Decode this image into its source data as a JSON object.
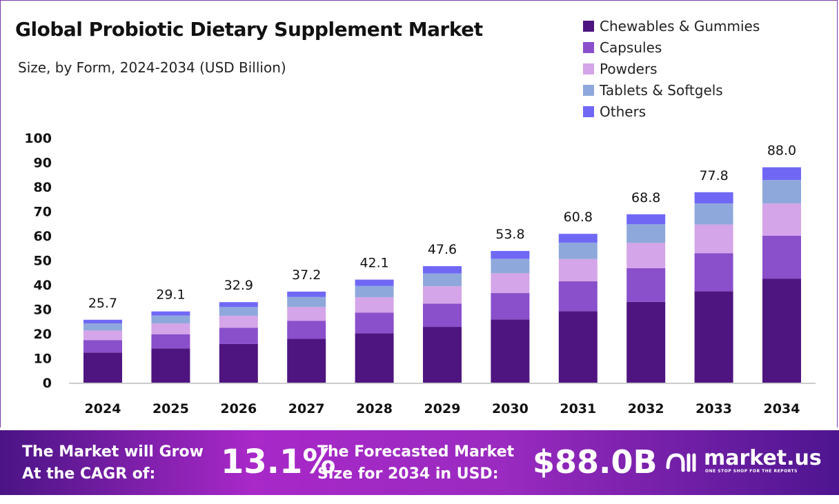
{
  "title": "Global Probiotic Dietary Supplement Market",
  "subtitle": "Size, by Form, 2024-2034 (USD Billion)",
  "legend": [
    "Chewables & Gummies",
    "Capsules",
    "Powders",
    "Tablets & Softgels",
    "Others"
  ],
  "colors": [
    "#4e1580",
    "#8a4fcb",
    "#d4a5e8",
    "#8fa8dc",
    "#7068f5"
  ],
  "chart_data": {
    "type": "bar",
    "stacked": true,
    "title": "Global Probiotic Dietary Supplement Market",
    "subtitle": "Size, by Form, 2024-2034 (USD Billion)",
    "categories": [
      "2024",
      "2025",
      "2026",
      "2027",
      "2028",
      "2029",
      "2030",
      "2031",
      "2032",
      "2033",
      "2034"
    ],
    "series": [
      {
        "name": "Chewables & Gummies",
        "values": [
          12.3,
          14.0,
          15.8,
          17.9,
          20.2,
          22.8,
          25.8,
          29.2,
          33.0,
          37.3,
          42.5
        ]
      },
      {
        "name": "Capsules",
        "values": [
          5.1,
          5.8,
          6.6,
          7.4,
          8.4,
          9.5,
          10.8,
          12.2,
          13.8,
          15.6,
          17.5
        ]
      },
      {
        "name": "Powders",
        "values": [
          3.9,
          4.4,
          4.9,
          5.6,
          6.3,
          7.1,
          8.1,
          9.1,
          10.3,
          11.7,
          13.2
        ]
      },
      {
        "name": "Tablets & Softgels",
        "values": [
          2.9,
          3.2,
          3.6,
          4.1,
          4.6,
          5.2,
          5.9,
          6.7,
          7.6,
          8.6,
          9.6
        ]
      },
      {
        "name": "Others",
        "values": [
          1.5,
          1.7,
          2.0,
          2.2,
          2.6,
          3.0,
          3.2,
          3.6,
          4.1,
          4.6,
          5.2
        ]
      }
    ],
    "totals": [
      "25.7",
      "29.1",
      "32.9",
      "37.2",
      "42.1",
      "47.6",
      "53.8",
      "60.8",
      "68.8",
      "77.8",
      "88.0"
    ],
    "yticks": [
      "0",
      "10",
      "20",
      "30",
      "40",
      "50",
      "60",
      "70",
      "80",
      "90",
      "100"
    ],
    "ylim": [
      0,
      100
    ],
    "grid": false,
    "legend_position": "top-right"
  },
  "banner": {
    "cagr_label_1": "The Market will Grow",
    "cagr_label_2": "At the CAGR of:",
    "cagr": "13.1%",
    "forecast_label_1": "The Forecasted Market",
    "forecast_label_2": "Size for 2034 in USD:",
    "forecast": "$88.0B",
    "brand": "market.us",
    "tagline": "ONE STOP SHOP FOR THE REPORTS"
  }
}
